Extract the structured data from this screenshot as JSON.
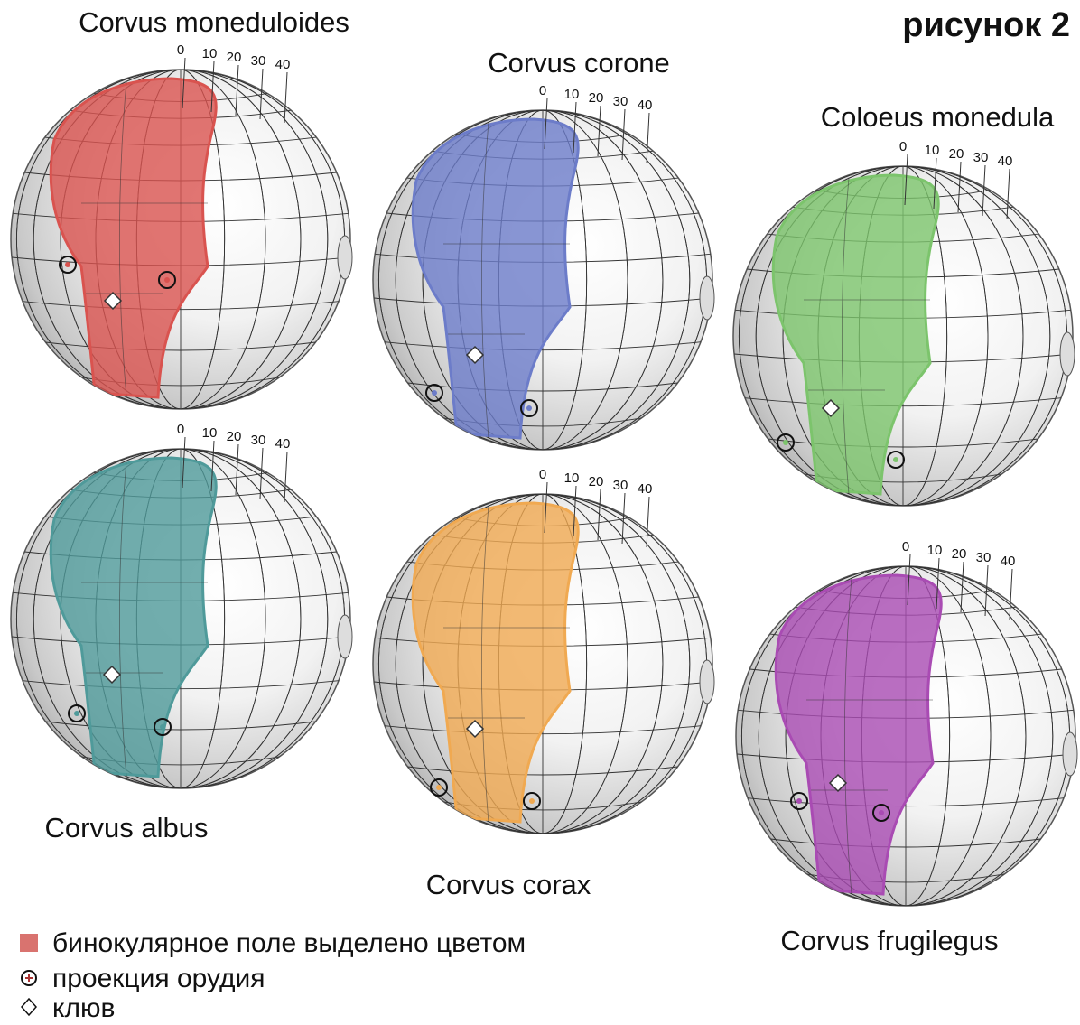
{
  "title": "рисунок 2",
  "panels": [
    {
      "name": "Corvus moneduloides",
      "color": "#d9534f",
      "scale": [
        0,
        10,
        20,
        30,
        40
      ]
    },
    {
      "name": "Corvus corone",
      "color": "#6c7cc9",
      "scale": [
        0,
        10,
        20,
        30,
        40
      ]
    },
    {
      "name": "Coloeus monedula",
      "color": "#7cc46c",
      "scale": [
        0,
        10,
        20,
        30,
        40
      ]
    },
    {
      "name": "Corvus albus",
      "color": "#4f9a9a",
      "scale": [
        0,
        10,
        20,
        30,
        40
      ]
    },
    {
      "name": "Corvus corax",
      "color": "#f0a951",
      "scale": [
        0,
        10,
        20,
        30,
        40
      ]
    },
    {
      "name": "Corvus frugilegus",
      "color": "#a94bb3",
      "scale": [
        0,
        10,
        20,
        30,
        40
      ]
    }
  ],
  "legend": [
    "бинокулярное поле выделено цветом",
    "проекция орудия",
    "клюв"
  ]
}
